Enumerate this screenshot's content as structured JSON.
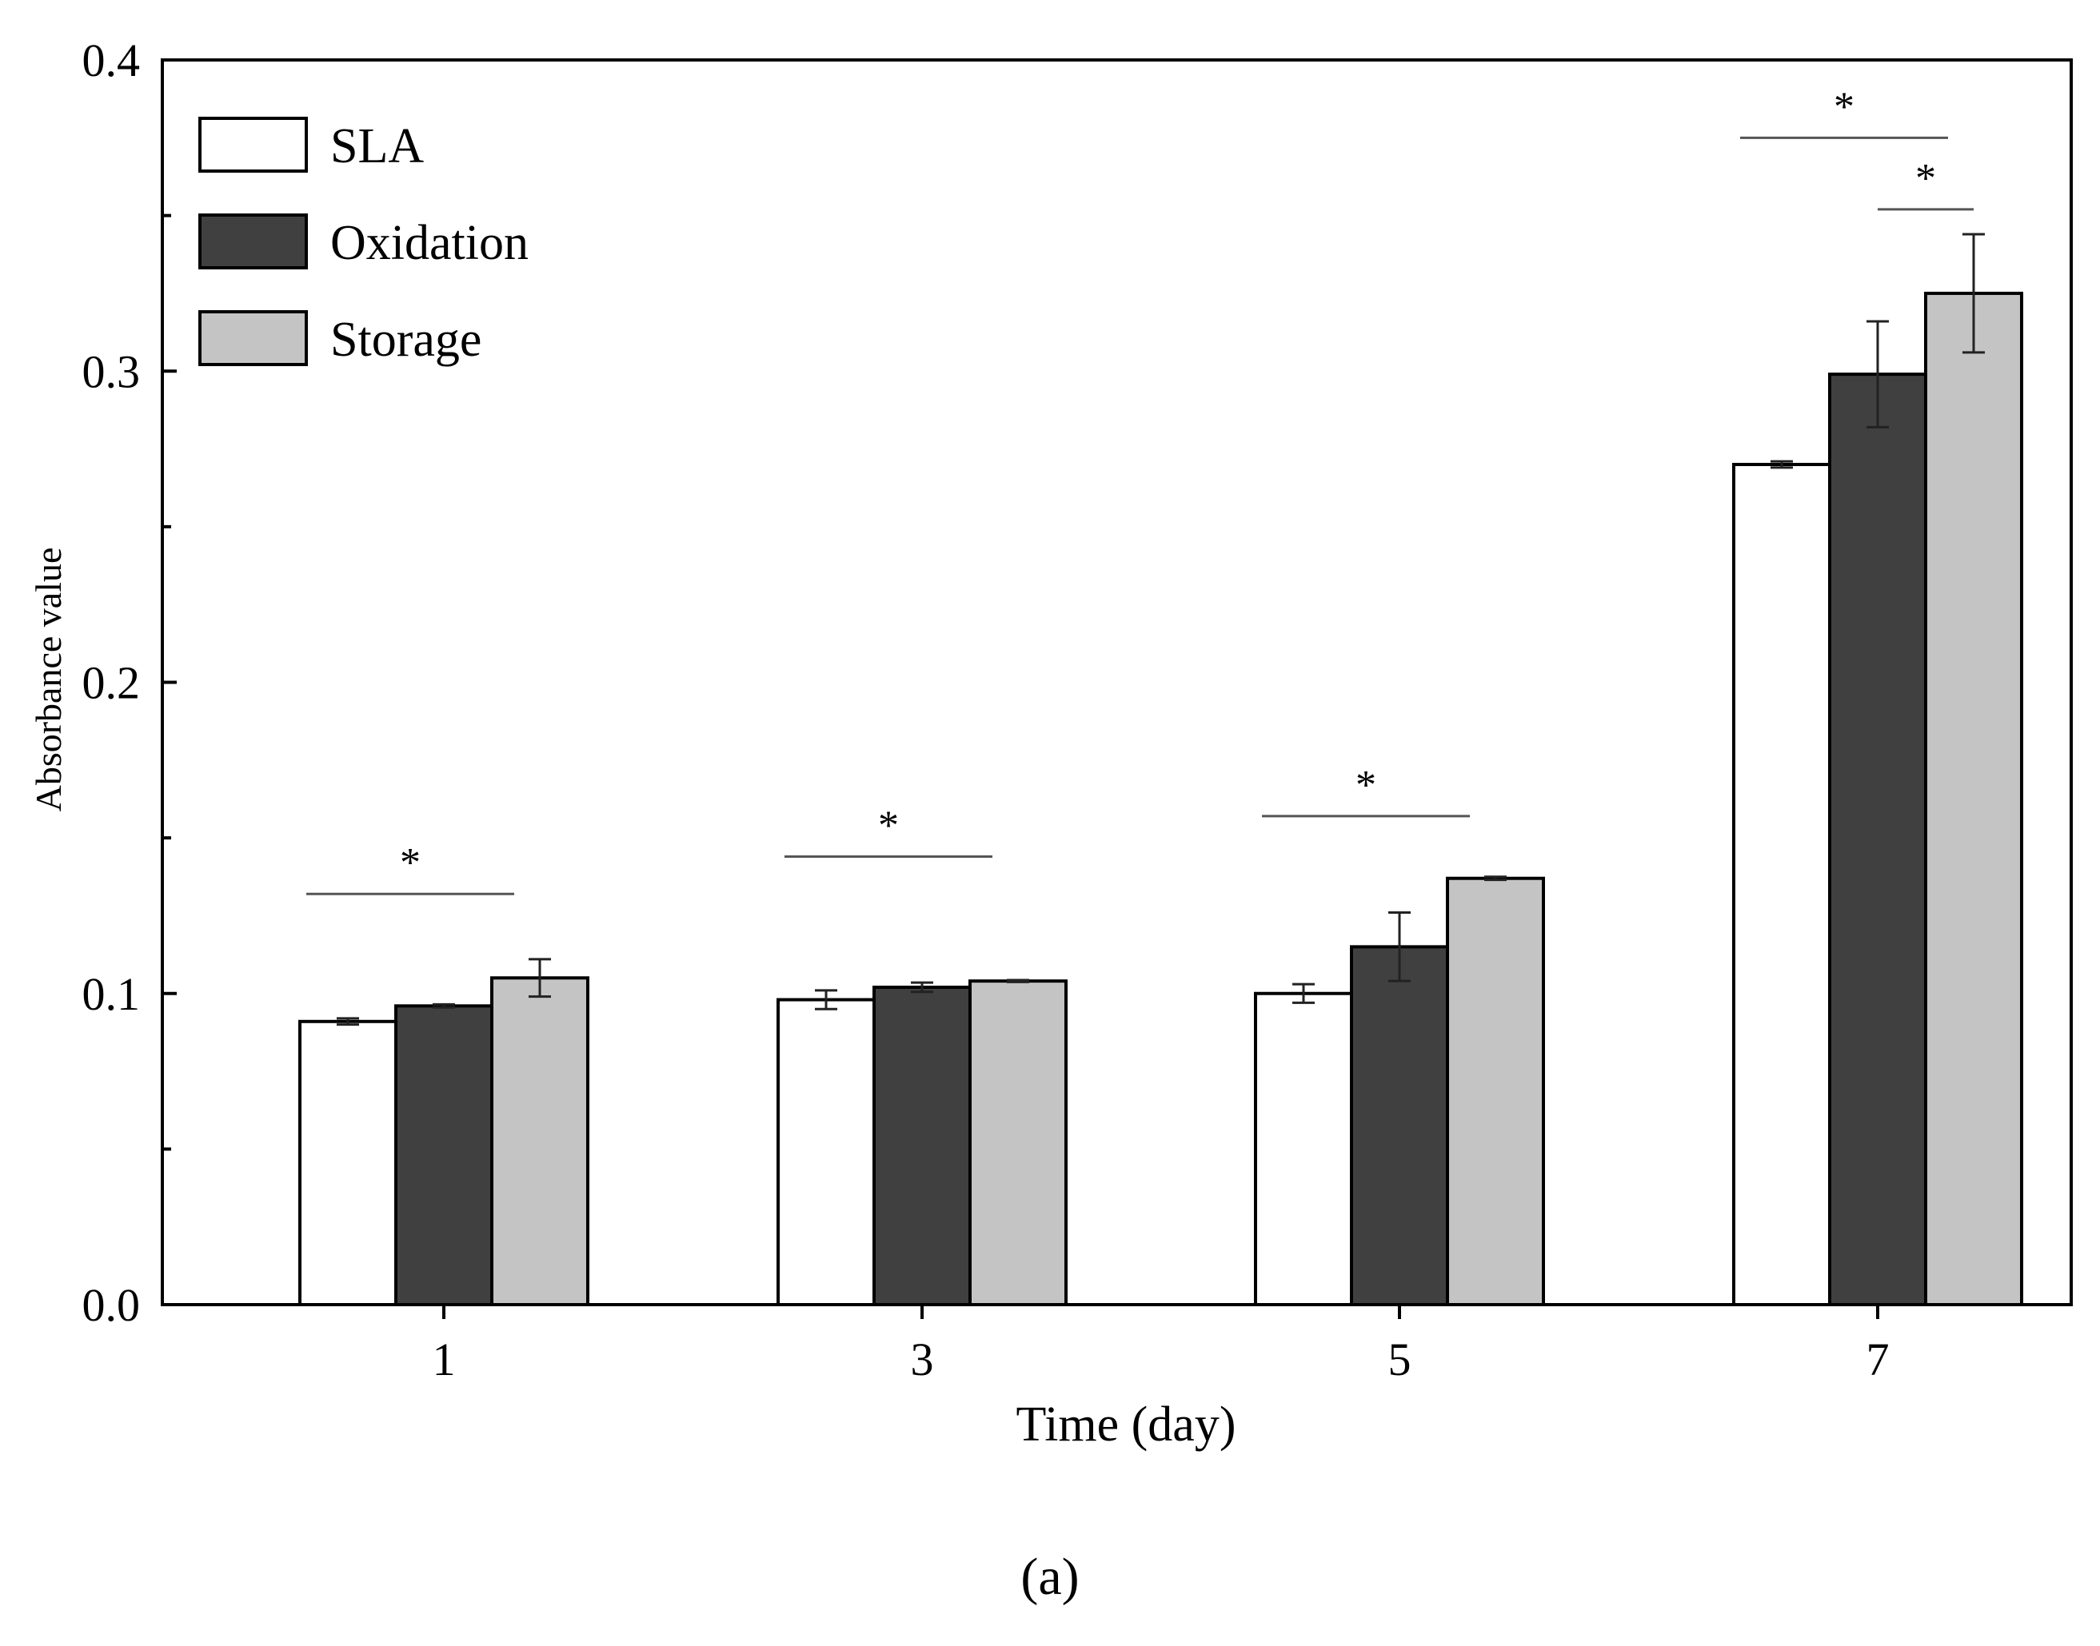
{
  "chart_data": {
    "type": "bar",
    "title": "",
    "xlabel": "Time (day)",
    "ylabel": "Absorbance value",
    "ylim": [
      0.0,
      0.4
    ],
    "yticks": [
      "0.0",
      "0.1",
      "0.2",
      "0.3",
      "0.4"
    ],
    "categories": [
      "1",
      "3",
      "5",
      "7"
    ],
    "series": [
      {
        "name": "SLA",
        "color": "#ffffff",
        "values": [
          0.091,
          0.098,
          0.1,
          0.27
        ],
        "errors": [
          0.001,
          0.003,
          0.003,
          0.001
        ]
      },
      {
        "name": "Oxidation",
        "color": "#404040",
        "values": [
          0.096,
          0.102,
          0.115,
          0.299
        ],
        "errors": [
          0.0005,
          0.0015,
          0.011,
          0.017
        ]
      },
      {
        "name": "Storage",
        "color": "#c4c4c4",
        "values": [
          0.105,
          0.104,
          0.137,
          0.325
        ],
        "errors": [
          0.006,
          0.0003,
          0.0005,
          0.019
        ]
      }
    ],
    "legend_position": "top-left",
    "significance": [
      {
        "category": "1",
        "from_series": "SLA",
        "to_series": "Storage",
        "level": 0.132,
        "label": "*"
      },
      {
        "category": "3",
        "from_series": "SLA",
        "to_series": "Storage",
        "level": 0.144,
        "label": "*"
      },
      {
        "category": "5",
        "from_series": "SLA",
        "to_series": "Storage",
        "level": 0.157,
        "label": "*"
      },
      {
        "category": "7",
        "from_series": "SLA",
        "to_series": "Storage",
        "level": 0.375,
        "label": "*"
      },
      {
        "category": "7",
        "from_series": "Oxidation",
        "to_series": "Storage",
        "level": 0.352,
        "label": "*"
      }
    ]
  },
  "panel_label": "(a)"
}
